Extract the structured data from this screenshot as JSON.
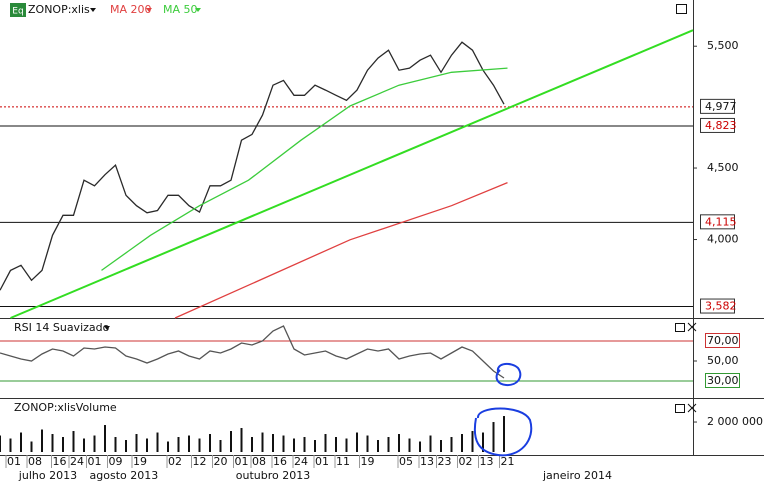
{
  "chart_data": [
    {
      "type": "line",
      "badge": "Eq",
      "scale": "log",
      "ylim": [
        3515,
        5935
      ],
      "yticks": [
        {
          "value": 5500,
          "label": "5,500"
        },
        {
          "value": 4500,
          "label": "4,500"
        },
        {
          "value": 4000,
          "label": "4,000"
        }
      ],
      "levels": [
        {
          "value": 4977,
          "label": "4,977",
          "color": "#cc0000",
          "style": "dotted",
          "text_color": "#111111"
        },
        {
          "value": 4823,
          "label": "4,823",
          "color": "#111111",
          "style": "solid",
          "text_color": "#cc0000"
        },
        {
          "value": 4115,
          "label": "4,115",
          "color": "#111111",
          "style": "solid",
          "text_color": "#cc0000"
        },
        {
          "value": 3582,
          "label": "3,582",
          "color": "#111111",
          "style": "solid",
          "text_color": "#cc0000"
        }
      ],
      "series": [
        {
          "name": "ZONOP:xlis",
          "color": "#2a2a2a",
          "x": [
            0,
            3,
            6,
            9,
            12,
            15,
            18,
            21,
            24,
            27,
            30,
            33,
            36,
            39,
            42,
            45,
            48,
            51,
            54,
            57,
            60,
            63,
            66,
            69,
            72,
            75,
            78,
            81,
            84,
            87,
            90,
            93,
            96,
            99,
            102,
            105,
            108,
            111,
            114,
            117,
            120,
            123,
            126,
            129,
            132,
            135,
            138,
            141,
            144
          ],
          "values": [
            3680,
            3802,
            3834,
            3740,
            3802,
            4028,
            4163,
            4163,
            4411,
            4370,
            4451,
            4522,
            4302,
            4229,
            4180,
            4196,
            4302,
            4302,
            4229,
            4185,
            4370,
            4370,
            4411,
            4711,
            4756,
            4910,
            5158,
            5199,
            5073,
            5073,
            5158,
            5116,
            5073,
            5031,
            5116,
            5287,
            5393,
            5464,
            5287,
            5305,
            5375,
            5419,
            5269,
            5419,
            5536,
            5464,
            5287,
            5158,
            4999
          ]
        },
        {
          "name": "MA 200",
          "color": "#e04040",
          "x": [
            50,
            71,
            100,
            129,
            145
          ],
          "values": [
            3515,
            3710,
            3998,
            4229,
            4393
          ]
        },
        {
          "name": "MA 50",
          "color": "#3ccc3c",
          "x": [
            29,
            43,
            57,
            71,
            86,
            100,
            114,
            129,
            145
          ],
          "values": [
            3802,
            4028,
            4229,
            4411,
            4711,
            4984,
            5158,
            5269,
            5305
          ]
        }
      ],
      "trendline": {
        "color": "#33dd22",
        "x": [
          3,
          198
        ],
        "values": [
          3515,
          5647
        ]
      }
    },
    {
      "type": "line",
      "title": "RSI 14 Suavizado",
      "ylim": [
        13,
        91
      ],
      "yticks": [
        {
          "value": 70,
          "label": "70,00"
        },
        {
          "value": 50,
          "label": "50,00"
        },
        {
          "value": 30,
          "label": "30,00"
        }
      ],
      "grid_colors": [
        "#cc3333",
        "none",
        "#339933"
      ],
      "series": [
        {
          "color": "#555555",
          "x": [
            0,
            3,
            6,
            9,
            12,
            15,
            18,
            21,
            24,
            27,
            30,
            33,
            36,
            39,
            42,
            45,
            48,
            51,
            54,
            57,
            60,
            63,
            66,
            69,
            72,
            75,
            78,
            81,
            84,
            87,
            90,
            93,
            96,
            99,
            102,
            105,
            108,
            111,
            114,
            117,
            120,
            123,
            126,
            129,
            132,
            135,
            138,
            141,
            144
          ],
          "values": [
            58,
            55,
            52,
            50,
            57,
            62,
            60,
            55,
            63,
            62,
            64,
            63,
            55,
            52,
            48,
            52,
            57,
            60,
            55,
            52,
            60,
            58,
            62,
            68,
            66,
            70,
            80,
            85,
            62,
            56,
            58,
            60,
            55,
            52,
            57,
            62,
            60,
            62,
            52,
            55,
            57,
            58,
            52,
            58,
            64,
            60,
            50,
            40,
            33
          ]
        }
      ]
    },
    {
      "type": "bar",
      "title": "ZONOP:xlisVolume",
      "ylim": [
        0,
        3470000
      ],
      "yticks": [
        {
          "value": 2000000,
          "label": "2 000 000"
        }
      ],
      "series": [
        {
          "color": "#111111",
          "x": [
            0,
            3,
            6,
            9,
            12,
            15,
            18,
            21,
            24,
            27,
            30,
            33,
            36,
            39,
            42,
            45,
            48,
            51,
            54,
            57,
            60,
            63,
            66,
            69,
            72,
            75,
            78,
            81,
            84,
            87,
            90,
            93,
            96,
            99,
            102,
            105,
            108,
            111,
            114,
            117,
            120,
            123,
            126,
            129,
            132,
            135,
            138,
            141,
            144
          ],
          "values": [
            1100000,
            900000,
            1300000,
            700000,
            1500000,
            1200000,
            1000000,
            1400000,
            900000,
            1100000,
            1800000,
            1000000,
            800000,
            1200000,
            900000,
            1300000,
            700000,
            1000000,
            1100000,
            900000,
            1200000,
            800000,
            1400000,
            1600000,
            1000000,
            1300000,
            1200000,
            1100000,
            900000,
            1000000,
            800000,
            1200000,
            1000000,
            900000,
            1300000,
            1100000,
            800000,
            1000000,
            1200000,
            900000,
            700000,
            1100000,
            800000,
            1000000,
            1200000,
            1400000,
            1300000,
            2000000,
            2400000
          ]
        }
      ]
    }
  ],
  "x_axis": {
    "xlim": [
      0,
      198
    ],
    "xticks": [
      {
        "value": 4,
        "label": "01"
      },
      {
        "value": 10,
        "label": "08"
      },
      {
        "value": 17,
        "label": "16"
      },
      {
        "value": 22,
        "label": "24"
      },
      {
        "value": 27,
        "label": "01"
      },
      {
        "value": 33,
        "label": "09"
      },
      {
        "value": 40,
        "label": "19"
      },
      {
        "value": 50,
        "label": "02"
      },
      {
        "value": 57,
        "label": "12"
      },
      {
        "value": 63,
        "label": "20"
      },
      {
        "value": 69,
        "label": "01"
      },
      {
        "value": 74,
        "label": "08"
      },
      {
        "value": 80,
        "label": "16"
      },
      {
        "value": 86,
        "label": "24"
      },
      {
        "value": 92,
        "label": "01"
      },
      {
        "value": 98,
        "label": "11"
      },
      {
        "value": 105,
        "label": "19"
      },
      {
        "value": 116,
        "label": "05"
      },
      {
        "value": 122,
        "label": "13"
      },
      {
        "value": 127,
        "label": "23"
      },
      {
        "value": 133,
        "label": "02"
      },
      {
        "value": 139,
        "label": "13"
      },
      {
        "value": 145,
        "label": "21"
      }
    ],
    "months": [
      {
        "value": 13.7,
        "label": "julho 2013"
      },
      {
        "value": 35.4,
        "label": "agosto 2013"
      },
      {
        "value": 78,
        "label": "outubro 2013"
      },
      {
        "value": 165,
        "label": "janeiro 2014"
      }
    ]
  }
}
